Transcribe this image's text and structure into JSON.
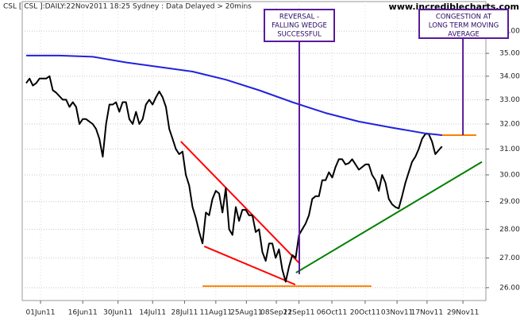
{
  "chart_data": {
    "type": "line",
    "title": "CSL [ CSL ]:DAILY:22Nov2011 18:25 Sydney : Data Delayed > 20mins",
    "watermark": "www.incrediblecharts.com",
    "log_scale": true,
    "grid": true,
    "xlim": [
      -1.2,
      138.2
    ],
    "ylim": [
      25.58,
      37
    ],
    "yticks": [
      {
        "value": 26,
        "label": "26.00"
      },
      {
        "value": 27,
        "label": "27.00"
      },
      {
        "value": 28,
        "label": "28.00"
      },
      {
        "value": 29,
        "label": "29.00"
      },
      {
        "value": 30,
        "label": "30.00"
      },
      {
        "value": 31,
        "label": "31.00"
      },
      {
        "value": 32,
        "label": "32.00"
      },
      {
        "value": 33,
        "label": "33.00"
      },
      {
        "value": 34,
        "label": "34.00"
      },
      {
        "value": 35,
        "label": "35.00"
      },
      {
        "value": 36,
        "label": "36.00"
      }
    ],
    "xticks": [
      {
        "value": 4.3,
        "label": "01Jun11"
      },
      {
        "value": 17,
        "label": "16Jun11"
      },
      {
        "value": 27.6,
        "label": "30Jun11"
      },
      {
        "value": 38,
        "label": "14Jul11"
      },
      {
        "value": 47.6,
        "label": "28Jul11"
      },
      {
        "value": 57,
        "label": "11Aug11"
      },
      {
        "value": 66.2,
        "label": "25Aug11"
      },
      {
        "value": 75.2,
        "label": "08Sep11"
      },
      {
        "value": 82,
        "label": "22Sep11"
      },
      {
        "value": 91.9,
        "label": "06Oct11"
      },
      {
        "value": 101.9,
        "label": "20Oct11"
      },
      {
        "value": 111.5,
        "label": "03Nov11"
      },
      {
        "value": 120.5,
        "label": "17Nov11"
      },
      {
        "value": 131.3,
        "label": "29Nov11"
      }
    ],
    "series": [
      {
        "color": "#000000",
        "width": 2,
        "x": [
          0,
          1,
          2,
          3,
          4,
          5,
          6,
          7,
          8,
          9,
          10,
          11,
          12,
          13,
          14,
          15,
          16,
          17,
          18,
          19,
          20,
          21,
          22,
          23,
          24,
          25,
          26,
          27,
          28,
          29,
          30,
          31,
          32,
          33,
          34,
          35,
          36,
          37,
          38,
          39,
          40,
          41,
          42,
          43,
          44,
          45,
          46,
          47,
          48,
          49,
          50,
          51,
          52,
          53,
          54,
          55,
          56,
          57,
          58,
          59,
          60,
          61,
          62,
          63,
          64,
          65,
          66,
          67,
          68,
          69,
          70,
          71,
          72,
          73,
          74,
          75,
          76,
          77,
          78,
          79,
          80,
          81,
          82,
          83,
          84,
          85,
          86,
          87,
          88,
          89,
          90,
          91,
          92,
          93,
          94,
          95,
          96,
          97,
          98,
          99,
          100,
          101,
          102,
          103,
          104,
          105,
          106,
          107,
          108,
          109,
          110,
          111,
          112,
          113,
          114,
          115,
          116,
          117,
          118,
          119,
          120,
          121,
          122,
          123,
          124,
          125
        ],
        "values": [
          33.7,
          33.9,
          33.6,
          33.7,
          33.9,
          33.9,
          33.9,
          34.0,
          33.4,
          33.3,
          33.15,
          33.0,
          33.0,
          32.7,
          32.9,
          32.7,
          32.0,
          32.2,
          32.2,
          32.1,
          32.0,
          31.8,
          31.4,
          30.7,
          32.0,
          32.8,
          32.8,
          32.9,
          32.5,
          32.9,
          32.9,
          32.2,
          32.0,
          32.5,
          32.0,
          32.2,
          32.8,
          33.0,
          32.8,
          33.1,
          33.35,
          33.1,
          32.7,
          31.8,
          31.4,
          31.0,
          30.8,
          30.9,
          30.0,
          29.6,
          28.8,
          28.4,
          27.9,
          27.5,
          28.6,
          28.5,
          29.1,
          29.4,
          29.3,
          28.6,
          29.5,
          28.0,
          27.8,
          28.8,
          28.3,
          28.7,
          28.7,
          28.5,
          28.5,
          27.9,
          28.0,
          27.2,
          26.9,
          27.5,
          27.5,
          27.0,
          27.3,
          26.6,
          26.2,
          26.7,
          27.1,
          27.0,
          27.8,
          28.0,
          28.2,
          28.5,
          29.1,
          29.2,
          29.2,
          29.8,
          29.8,
          30.1,
          29.9,
          30.3,
          30.6,
          30.6,
          30.4,
          30.45,
          30.6,
          30.4,
          30.2,
          30.3,
          30.4,
          30.4,
          30.0,
          29.8,
          29.4,
          30.0,
          29.7,
          29.1,
          28.9,
          28.8,
          28.75,
          29.2,
          29.7,
          30.1,
          30.5,
          30.7,
          31.0,
          31.4,
          31.6,
          31.6,
          31.3,
          30.8,
          30.95,
          31.1
        ]
      },
      {
        "color": "#2222dd",
        "width": 2,
        "x": [
          0,
          10,
          20,
          30,
          40,
          50,
          60,
          70,
          80,
          90,
          100,
          110,
          120,
          125
        ],
        "values": [
          34.9,
          34.9,
          34.85,
          34.6,
          34.4,
          34.2,
          33.85,
          33.4,
          32.9,
          32.45,
          32.1,
          31.85,
          31.62,
          31.55
        ]
      }
    ],
    "trendlines": [
      {
        "color": "#ff0000",
        "x": [
          46.5,
          82.3
        ],
        "values": [
          31.3,
          26.8
        ]
      },
      {
        "color": "#ff0000",
        "x": [
          53.5,
          80.9
        ],
        "values": [
          27.4,
          26.1
        ]
      },
      {
        "color": "#008000",
        "x": [
          81.1,
          137
        ],
        "values": [
          26.5,
          30.5
        ]
      },
      {
        "color": "#ff8000",
        "x": [
          53,
          103.8
        ],
        "values": [
          26.05,
          26.05
        ]
      },
      {
        "color": "#ff8000",
        "x": [
          124.6,
          135.3
        ],
        "values": [
          31.55,
          31.55
        ]
      }
    ],
    "annotations": [
      {
        "text": [
          "REVERSAL -",
          "FALLING WEDGE",
          "SUCCESSFUL"
        ],
        "x": 82.1,
        "value": 26.45
      },
      {
        "text": [
          "CONGESTION AT",
          "LONG TERM MOVING",
          "AVERAGE"
        ],
        "x": 131.3,
        "value": 31.55
      }
    ]
  }
}
